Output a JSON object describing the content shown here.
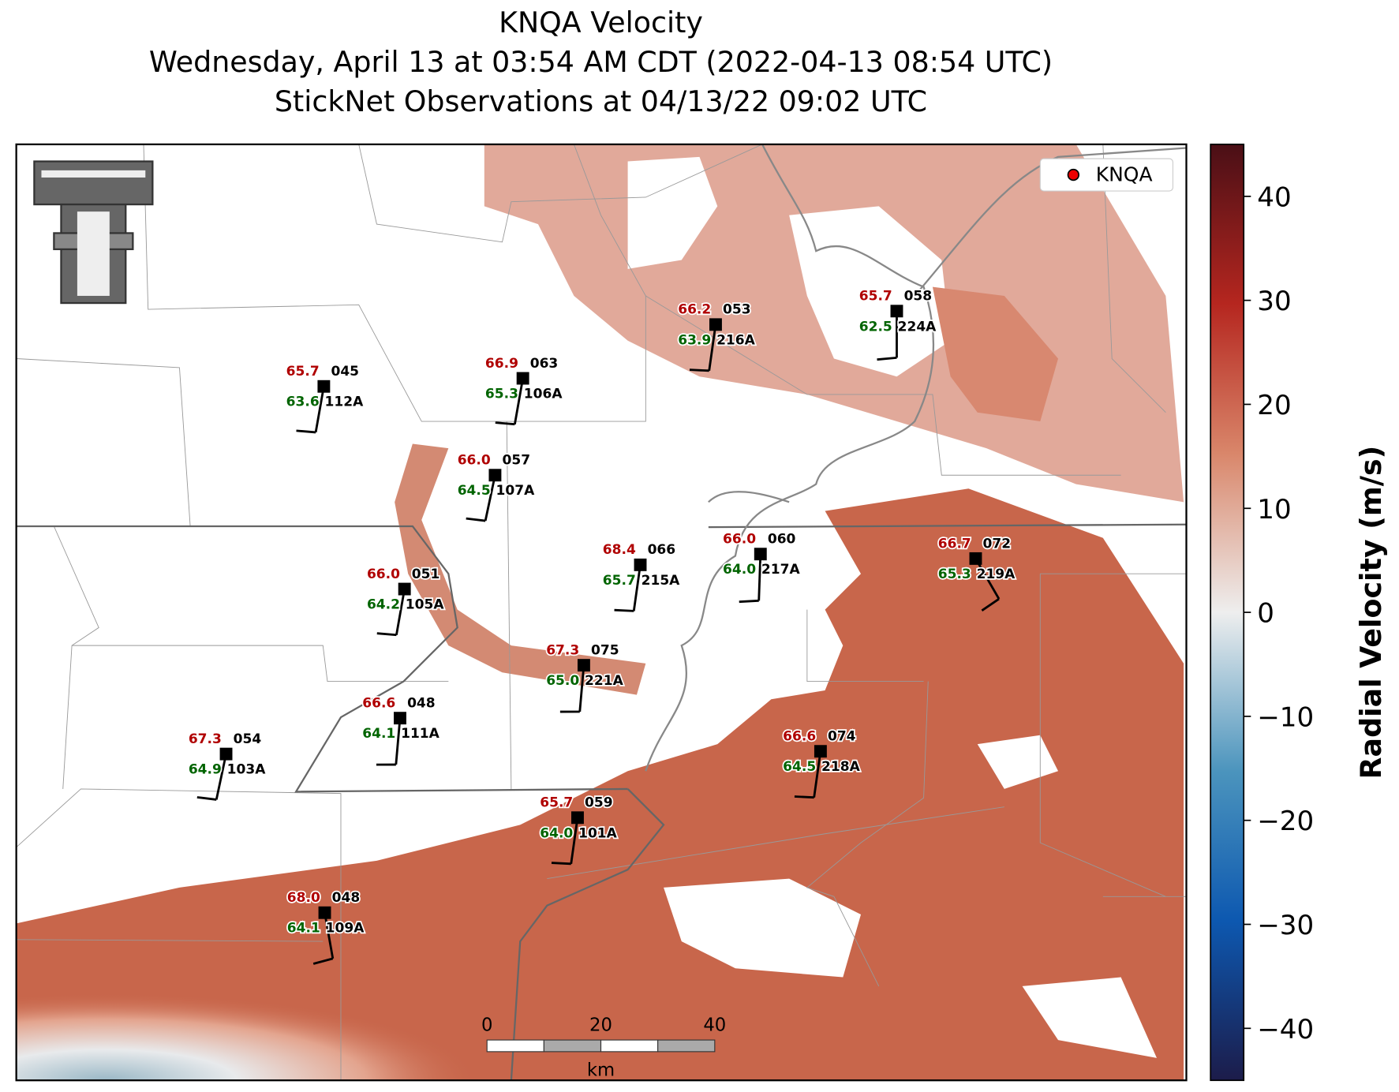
{
  "header": {
    "title": "KNQA Velocity",
    "subtitle": "Wednesday, April 13 at 03:54 AM CDT (2022-04-13 08:54 UTC)",
    "subtitle2": "StickNet Observations at 04/13/22 09:02 UTC"
  },
  "legend": {
    "label": "KNQA"
  },
  "colorbar": {
    "label": "Radial Velocity (m/s)",
    "lim": [
      -45,
      45
    ],
    "ticks": [
      {
        "value": -40,
        "label": "−40"
      },
      {
        "value": -30,
        "label": "−30"
      },
      {
        "value": -20,
        "label": "−20"
      },
      {
        "value": -10,
        "label": "−10"
      },
      0,
      10,
      20,
      30,
      40
    ]
  },
  "scale_bar": {
    "ticks": [
      0,
      20,
      40
    ],
    "unit": "km"
  },
  "stations": [
    {
      "id": "045",
      "temp": "65.7",
      "dewpoint": "63.6",
      "probe": "112A"
    },
    {
      "id": "063",
      "temp": "66.9",
      "dewpoint": "65.3",
      "probe": "106A"
    },
    {
      "id": "053",
      "temp": "66.2",
      "dewpoint": "63.9",
      "probe": "216A"
    },
    {
      "id": "058",
      "temp": "65.7",
      "dewpoint": "62.5",
      "probe": "224A"
    },
    {
      "id": "057",
      "temp": "66.0",
      "dewpoint": "64.5",
      "probe": "107A"
    },
    {
      "id": "066",
      "temp": "68.4",
      "dewpoint": "65.7",
      "probe": "215A"
    },
    {
      "id": "060",
      "temp": "66.0",
      "dewpoint": "64.0",
      "probe": "217A"
    },
    {
      "id": "072",
      "temp": "66.7",
      "dewpoint": "65.3",
      "probe": "219A"
    },
    {
      "id": "051",
      "temp": "66.0",
      "dewpoint": "64.2",
      "probe": "105A"
    },
    {
      "id": "075",
      "temp": "67.3",
      "dewpoint": "65.0",
      "probe": "221A"
    },
    {
      "id": "048",
      "temp": "66.6",
      "dewpoint": "64.1",
      "probe": "111A"
    },
    {
      "id": "054",
      "temp": "67.3",
      "dewpoint": "64.9",
      "probe": "103A"
    },
    {
      "id": "074",
      "temp": "66.6",
      "dewpoint": "64.5",
      "probe": "218A"
    },
    {
      "id": "059",
      "temp": "65.7",
      "dewpoint": "64.0",
      "probe": "101A"
    },
    {
      "id": "048",
      "temp": "68.0",
      "dewpoint": "64.1",
      "probe": "109A"
    }
  ]
}
